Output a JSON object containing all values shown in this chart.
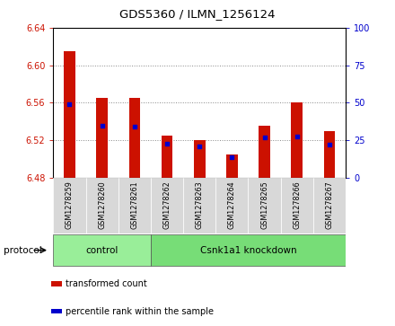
{
  "title": "GDS5360 / ILMN_1256124",
  "samples": [
    "GSM1278259",
    "GSM1278260",
    "GSM1278261",
    "GSM1278262",
    "GSM1278263",
    "GSM1278264",
    "GSM1278265",
    "GSM1278266",
    "GSM1278267"
  ],
  "bar_bottom": 6.48,
  "bar_tops": [
    6.615,
    6.565,
    6.565,
    6.525,
    6.52,
    6.505,
    6.535,
    6.56,
    6.53
  ],
  "blue_dot_y": [
    6.558,
    6.535,
    6.534,
    6.516,
    6.513,
    6.502,
    6.523,
    6.524,
    6.515
  ],
  "ylim": [
    6.48,
    6.64
  ],
  "y_ticks": [
    6.48,
    6.52,
    6.56,
    6.6,
    6.64
  ],
  "right_yticks": [
    0,
    25,
    50,
    75,
    100
  ],
  "right_ylim": [
    0,
    100
  ],
  "bar_color": "#cc1100",
  "dot_color": "#0000cc",
  "protocol_groups": [
    {
      "label": "control",
      "start": 0,
      "end": 3,
      "color": "#99ee99"
    },
    {
      "label": "Csnk1a1 knockdown",
      "start": 3,
      "end": 9,
      "color": "#77dd77"
    }
  ],
  "protocol_label": "protocol",
  "legend_items": [
    {
      "color": "#cc1100",
      "label": "transformed count"
    },
    {
      "color": "#0000cc",
      "label": "percentile rank within the sample"
    }
  ],
  "bar_width": 0.35,
  "grid_color": "#888888",
  "cell_bg": "#d8d8d8",
  "tick_label_color_left": "#cc1100",
  "tick_label_color_right": "#0000cc"
}
